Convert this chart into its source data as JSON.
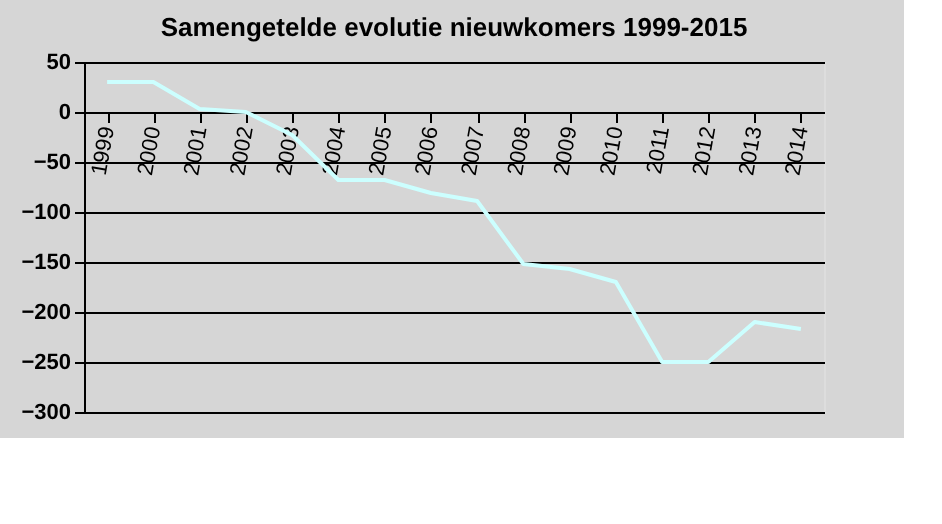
{
  "chart_data": {
    "type": "line",
    "title": "Samengetelde evolutie nieuwkomers 1999-2015",
    "categories": [
      "1999",
      "2000",
      "2001",
      "2002",
      "2003",
      "2004",
      "2005",
      "2006",
      "2007",
      "2008",
      "2009",
      "2010",
      "2011",
      "2012",
      "2013",
      "2014"
    ],
    "series": [
      {
        "color": "#ccffff",
        "values": [
          30,
          30,
          3,
          0,
          -23,
          -68,
          -68,
          -81,
          -89,
          -152,
          -157,
          -170,
          -250,
          -250,
          -210,
          -217
        ]
      }
    ],
    "ylim": [
      -300,
      50
    ],
    "yticks": [
      -300,
      -250,
      -200,
      -150,
      -100,
      -50,
      0,
      50
    ],
    "grid": "y",
    "marker": "none",
    "line_style": "solid"
  }
}
